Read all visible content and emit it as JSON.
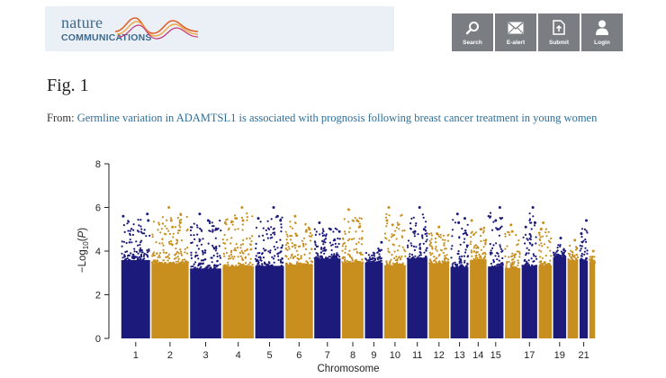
{
  "header": {
    "logo_top": "nature",
    "logo_bottom": "COMMUNICATIONS",
    "nav": [
      {
        "label": "Search",
        "icon": "search-icon"
      },
      {
        "label": "E-alert",
        "icon": "envelope-icon"
      },
      {
        "label": "Submit",
        "icon": "upload-document-icon"
      },
      {
        "label": "Login",
        "icon": "user-icon"
      }
    ],
    "banner_color": "#eaf0f6",
    "nav_color": "#7a7e82"
  },
  "figure": {
    "title": "Fig. 1",
    "from_prefix": "From: ",
    "article_link": "Germline variation in ADAMTSL1 is associated with prognosis following breast cancer treatment in young women"
  },
  "chart_data": {
    "type": "scatter",
    "subtype": "manhattan",
    "xlabel": "Chromosome",
    "ylabel_parts": [
      "−Log",
      "10",
      "(",
      "P",
      ")"
    ],
    "ylim": [
      0,
      8
    ],
    "yticks": [
      "0",
      "2",
      "4",
      "6",
      "8"
    ],
    "grid": false,
    "colors": [
      "#1c1a7a",
      "#c88f1e"
    ],
    "chromosomes": [
      {
        "chr": "1",
        "label": "1",
        "peak": 5.7,
        "top": [
          5.4,
          5.6
        ]
      },
      {
        "chr": "2",
        "label": "2",
        "peak": 6.0,
        "top": [
          5.1,
          5.3,
          5.4
        ]
      },
      {
        "chr": "3",
        "label": "3",
        "peak": 5.7,
        "top": [
          5.4,
          5.0
        ]
      },
      {
        "chr": "4",
        "label": "4",
        "peak": 6.0,
        "top": [
          5.5,
          5.4,
          5.3
        ]
      },
      {
        "chr": "5",
        "label": "5",
        "peak": 6.0,
        "top": [
          5.5,
          5.4,
          5.6
        ]
      },
      {
        "chr": "6",
        "label": "6",
        "peak": 5.6,
        "top": [
          5.0,
          4.9
        ]
      },
      {
        "chr": "7",
        "label": "7",
        "peak": 5.3,
        "top": [
          4.9,
          5.0
        ]
      },
      {
        "chr": "8",
        "label": "8",
        "peak": 5.9,
        "top": [
          5.4,
          5.1
        ]
      },
      {
        "chr": "9",
        "label": "9",
        "peak": 4.4,
        "top": []
      },
      {
        "chr": "10",
        "label": "10",
        "peak": 6.0,
        "top": [
          5.4,
          5.2
        ]
      },
      {
        "chr": "11",
        "label": "11",
        "peak": 6.0,
        "top": [
          5.0,
          4.9
        ]
      },
      {
        "chr": "12",
        "label": "12",
        "peak": 5.1,
        "top": [
          4.8
        ]
      },
      {
        "chr": "13",
        "label": "13",
        "peak": 5.7,
        "top": [
          5.5,
          5.3
        ]
      },
      {
        "chr": "14",
        "label": "14",
        "peak": 5.4,
        "top": [
          5.0
        ]
      },
      {
        "chr": "15",
        "label": "15",
        "peak": 6.0,
        "top": [
          5.4,
          5.0
        ]
      },
      {
        "chr": "16",
        "label": "",
        "peak": 5.2,
        "top": [
          4.9
        ]
      },
      {
        "chr": "17",
        "label": "17",
        "peak": 6.0,
        "top": [
          5.3,
          5.1
        ]
      },
      {
        "chr": "18",
        "label": "",
        "peak": 5.3,
        "top": [
          5.0
        ]
      },
      {
        "chr": "19",
        "label": "19",
        "peak": 4.6,
        "top": []
      },
      {
        "chr": "20",
        "label": "",
        "peak": 4.5,
        "top": []
      },
      {
        "chr": "21",
        "label": "21",
        "peak": 5.4,
        "top": [
          4.8
        ]
      },
      {
        "chr": "22",
        "label": "",
        "peak": 4.0,
        "top": []
      }
    ]
  }
}
